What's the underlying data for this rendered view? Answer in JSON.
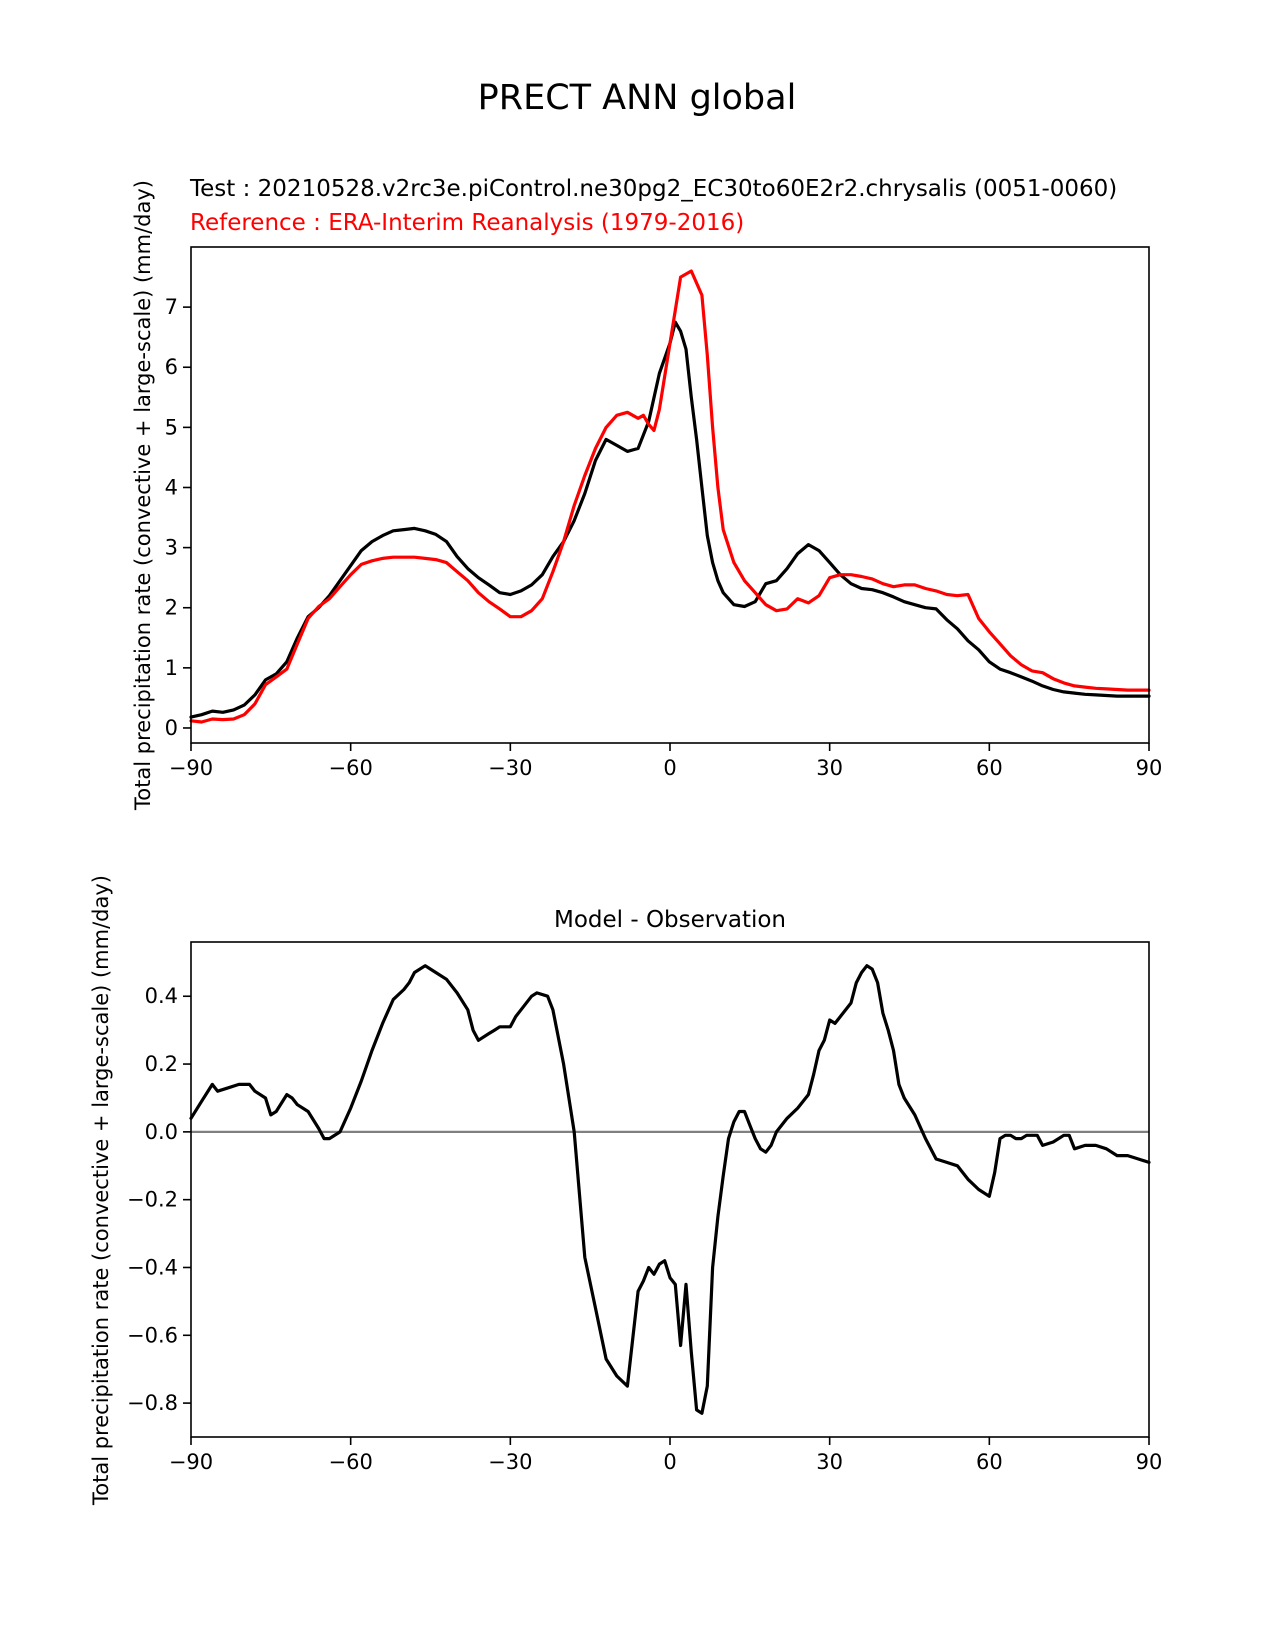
{
  "figure": {
    "suptitle": "PRECT ANN global"
  },
  "chart_data": [
    {
      "type": "line",
      "title_test": "Test : 20210528.v2rc3e.piControl.ne30pg2_EC30to60E2r2.chrysalis (0051-0060)",
      "title_reference": "Reference : ERA-Interim Reanalysis (1979-2016)",
      "xlabel": "",
      "ylabel": "Total precipitation rate (convective + large-scale) (mm/day)",
      "xlim": [
        -90,
        90
      ],
      "ylim": [
        -0.25,
        8.0
      ],
      "x_ticks": [
        -90,
        -60,
        -30,
        0,
        30,
        60,
        90
      ],
      "x_tick_labels": [
        "−90",
        "−60",
        "−30",
        "0",
        "30",
        "60",
        "90"
      ],
      "y_ticks": [
        0,
        1,
        2,
        3,
        4,
        5,
        6,
        7
      ],
      "y_tick_labels": [
        "0",
        "1",
        "2",
        "3",
        "4",
        "5",
        "6",
        "7"
      ],
      "grid": false,
      "legend": "none",
      "series": [
        {
          "color": "#000000",
          "x": [
            -90,
            -88,
            -86,
            -84,
            -82,
            -80,
            -78,
            -76,
            -74,
            -72,
            -70,
            -68,
            -66,
            -64,
            -62,
            -60,
            -58,
            -56,
            -54,
            -52,
            -50,
            -48,
            -46,
            -44,
            -42,
            -40,
            -38,
            -36,
            -34,
            -32,
            -30,
            -28,
            -26,
            -24,
            -22,
            -20,
            -18,
            -16,
            -14,
            -12,
            -10,
            -8,
            -6,
            -4,
            -2,
            0,
            1,
            2,
            3,
            4,
            5,
            6,
            7,
            8,
            9,
            10,
            12,
            14,
            16,
            18,
            20,
            22,
            24,
            26,
            28,
            30,
            32,
            34,
            36,
            38,
            40,
            42,
            44,
            46,
            48,
            50,
            52,
            54,
            56,
            58,
            60,
            62,
            64,
            66,
            68,
            70,
            72,
            74,
            76,
            78,
            80,
            82,
            84,
            86,
            88,
            90
          ],
          "values": [
            0.18,
            0.22,
            0.28,
            0.26,
            0.3,
            0.38,
            0.55,
            0.8,
            0.9,
            1.1,
            1.5,
            1.85,
            2.0,
            2.2,
            2.45,
            2.7,
            2.95,
            3.1,
            3.2,
            3.28,
            3.3,
            3.32,
            3.28,
            3.22,
            3.1,
            2.85,
            2.65,
            2.5,
            2.38,
            2.25,
            2.22,
            2.28,
            2.38,
            2.55,
            2.85,
            3.1,
            3.45,
            3.9,
            4.45,
            4.8,
            4.7,
            4.6,
            4.65,
            5.1,
            5.9,
            6.4,
            6.75,
            6.6,
            6.3,
            5.5,
            4.8,
            4.0,
            3.2,
            2.75,
            2.45,
            2.25,
            2.05,
            2.02,
            2.1,
            2.4,
            2.45,
            2.65,
            2.9,
            3.05,
            2.95,
            2.75,
            2.55,
            2.4,
            2.32,
            2.3,
            2.25,
            2.18,
            2.1,
            2.05,
            2.0,
            1.98,
            1.8,
            1.65,
            1.45,
            1.3,
            1.1,
            0.98,
            0.92,
            0.85,
            0.78,
            0.7,
            0.64,
            0.6,
            0.58,
            0.56,
            0.55,
            0.54,
            0.53,
            0.53,
            0.53,
            0.53
          ]
        },
        {
          "color": "#ff0000",
          "x": [
            -90,
            -88,
            -86,
            -84,
            -82,
            -80,
            -78,
            -76,
            -74,
            -72,
            -70,
            -68,
            -66,
            -64,
            -62,
            -60,
            -58,
            -56,
            -54,
            -52,
            -50,
            -48,
            -46,
            -44,
            -42,
            -40,
            -38,
            -36,
            -34,
            -32,
            -30,
            -28,
            -26,
            -24,
            -22,
            -20,
            -18,
            -16,
            -14,
            -12,
            -10,
            -8,
            -6,
            -5,
            -4,
            -3,
            -2,
            0,
            2,
            4,
            6,
            7,
            8,
            9,
            10,
            12,
            14,
            16,
            18,
            20,
            22,
            24,
            26,
            28,
            30,
            32,
            34,
            36,
            38,
            40,
            42,
            44,
            46,
            48,
            50,
            52,
            54,
            56,
            58,
            60,
            62,
            64,
            66,
            68,
            70,
            72,
            74,
            76,
            78,
            80,
            82,
            84,
            86,
            88,
            90
          ],
          "values": [
            0.12,
            0.1,
            0.15,
            0.14,
            0.15,
            0.22,
            0.4,
            0.72,
            0.85,
            0.98,
            1.4,
            1.82,
            2.02,
            2.15,
            2.35,
            2.55,
            2.72,
            2.78,
            2.82,
            2.84,
            2.84,
            2.84,
            2.82,
            2.8,
            2.75,
            2.6,
            2.45,
            2.25,
            2.1,
            1.98,
            1.85,
            1.85,
            1.95,
            2.15,
            2.6,
            3.1,
            3.7,
            4.2,
            4.65,
            5.0,
            5.2,
            5.25,
            5.15,
            5.2,
            5.05,
            4.95,
            5.3,
            6.4,
            7.5,
            7.6,
            7.2,
            6.2,
            5.0,
            4.0,
            3.3,
            2.75,
            2.45,
            2.25,
            2.05,
            1.95,
            1.98,
            2.15,
            2.08,
            2.2,
            2.5,
            2.55,
            2.55,
            2.52,
            2.48,
            2.4,
            2.35,
            2.38,
            2.38,
            2.32,
            2.28,
            2.22,
            2.2,
            2.22,
            1.82,
            1.6,
            1.4,
            1.2,
            1.05,
            0.95,
            0.92,
            0.82,
            0.75,
            0.7,
            0.68,
            0.66,
            0.65,
            0.64,
            0.63,
            0.63,
            0.63
          ]
        }
      ]
    },
    {
      "type": "line",
      "title": "Model - Observation",
      "xlabel": "",
      "ylabel": "Total precipitation rate (convective + large-scale) (mm/day)",
      "xlim": [
        -90,
        90
      ],
      "ylim": [
        -0.9,
        0.56
      ],
      "x_ticks": [
        -90,
        -60,
        -30,
        0,
        30,
        60,
        90
      ],
      "x_tick_labels": [
        "−90",
        "−60",
        "−30",
        "0",
        "30",
        "60",
        "90"
      ],
      "y_ticks": [
        -0.8,
        -0.6,
        -0.4,
        -0.2,
        0.0,
        0.2,
        0.4
      ],
      "y_tick_labels": [
        "−0.8",
        "−0.6",
        "−0.4",
        "−0.2",
        "0.0",
        "0.2",
        "0.4"
      ],
      "grid": false,
      "legend": "none",
      "reference_line": {
        "y": 0,
        "color": "#808080"
      },
      "series": [
        {
          "color": "#000000",
          "x": [
            -90,
            -88,
            -86,
            -85,
            -83,
            -81,
            -79,
            -78,
            -76,
            -75,
            -74,
            -72,
            -71,
            -70,
            -68,
            -66,
            -65,
            -64,
            -62,
            -60,
            -58,
            -56,
            -54,
            -52,
            -50,
            -49,
            -48,
            -46,
            -45,
            -44,
            -42,
            -40,
            -38,
            -37,
            -36,
            -34,
            -33,
            -32,
            -30,
            -29,
            -28,
            -26,
            -25,
            -23,
            -22,
            -20,
            -18,
            -16,
            -14,
            -12,
            -10,
            -8,
            -6,
            -5,
            -4,
            -3,
            -2,
            -1,
            0,
            1,
            2,
            3,
            4,
            5,
            6,
            7,
            8,
            9,
            10,
            11,
            12,
            13,
            14,
            15,
            16,
            17,
            18,
            19,
            20,
            22,
            24,
            26,
            27,
            28,
            29,
            30,
            31,
            32,
            34,
            35,
            36,
            37,
            38,
            39,
            40,
            41,
            42,
            43,
            44,
            46,
            48,
            50,
            52,
            54,
            56,
            58,
            60,
            61,
            62,
            63,
            64,
            65,
            66,
            67,
            68,
            69,
            70,
            72,
            74,
            75,
            76,
            78,
            80,
            82,
            84,
            86,
            88,
            90
          ],
          "values": [
            0.04,
            0.09,
            0.14,
            0.12,
            0.13,
            0.14,
            0.14,
            0.12,
            0.1,
            0.05,
            0.06,
            0.11,
            0.1,
            0.08,
            0.06,
            0.01,
            -0.02,
            -0.02,
            0.0,
            0.07,
            0.15,
            0.24,
            0.32,
            0.39,
            0.42,
            0.44,
            0.47,
            0.49,
            0.48,
            0.47,
            0.45,
            0.41,
            0.36,
            0.3,
            0.27,
            0.29,
            0.3,
            0.31,
            0.31,
            0.34,
            0.36,
            0.4,
            0.41,
            0.4,
            0.36,
            0.2,
            0.0,
            -0.37,
            -0.52,
            -0.67,
            -0.72,
            -0.75,
            -0.47,
            -0.44,
            -0.4,
            -0.42,
            -0.39,
            -0.38,
            -0.43,
            -0.45,
            -0.63,
            -0.45,
            -0.65,
            -0.82,
            -0.83,
            -0.75,
            -0.4,
            -0.25,
            -0.13,
            -0.02,
            0.03,
            0.06,
            0.06,
            0.02,
            -0.02,
            -0.05,
            -0.06,
            -0.04,
            0.0,
            0.04,
            0.07,
            0.11,
            0.17,
            0.24,
            0.27,
            0.33,
            0.32,
            0.34,
            0.38,
            0.44,
            0.47,
            0.49,
            0.48,
            0.44,
            0.35,
            0.3,
            0.24,
            0.14,
            0.1,
            0.05,
            -0.02,
            -0.08,
            -0.09,
            -0.1,
            -0.14,
            -0.17,
            -0.19,
            -0.12,
            -0.02,
            -0.01,
            -0.01,
            -0.02,
            -0.02,
            -0.01,
            -0.01,
            -0.01,
            -0.04,
            -0.03,
            -0.01,
            -0.01,
            -0.05,
            -0.04,
            -0.04,
            -0.05,
            -0.07,
            -0.07,
            -0.08,
            -0.09
          ]
        }
      ]
    }
  ]
}
